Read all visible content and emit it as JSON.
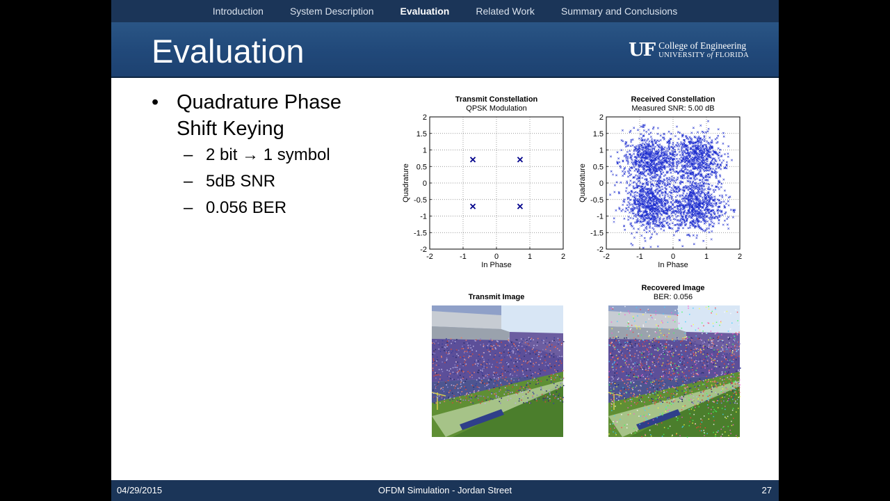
{
  "nav": {
    "items": [
      "Introduction",
      "System Description",
      "Evaluation",
      "Related Work",
      "Summary and Conclusions"
    ],
    "active_index": 2
  },
  "slide": {
    "title": "Evaluation"
  },
  "logo": {
    "mark": "UF",
    "line1": "College of Engineering",
    "line2_a": "UNIVERSITY ",
    "line2_b": "of",
    "line2_c": " FLORIDA"
  },
  "bullets": {
    "main": {
      "marker": "•",
      "text_line1": "Quadrature Phase",
      "text_line2": "Shift Keying"
    },
    "subs": [
      {
        "marker": "–",
        "text": "2 bit → 1 symbol"
      },
      {
        "marker": "–",
        "text": "5dB SNR"
      },
      {
        "marker": "–",
        "text": "0.056 BER"
      }
    ]
  },
  "chart_data": [
    {
      "type": "scatter",
      "title": "Transmit Constellation",
      "subtitle": "QPSK Modulation",
      "xlabel": "In Phase",
      "ylabel": "Quadrature",
      "xlim": [
        -2,
        2
      ],
      "ylim": [
        -2,
        2
      ],
      "xticks": [
        "-2",
        "-1",
        "0",
        "1",
        "2"
      ],
      "yticks": [
        "2",
        "1.5",
        "1",
        "0.5",
        "0",
        "-0.5",
        "-1",
        "-1.5",
        "-2"
      ],
      "grid": true,
      "marker": "x",
      "points": [
        [
          -0.707,
          0.707
        ],
        [
          0.707,
          0.707
        ],
        [
          -0.707,
          -0.707
        ],
        [
          0.707,
          -0.707
        ]
      ]
    },
    {
      "type": "scatter",
      "title": "Received Constellation",
      "subtitle": "Measured SNR: 5.00 dB",
      "xlabel": "In Phase",
      "ylabel": "Quadrature",
      "xlim": [
        -2,
        2
      ],
      "ylim": [
        -2,
        2
      ],
      "xticks": [
        "-2",
        "-1",
        "0",
        "1",
        "2"
      ],
      "yticks": [
        "2",
        "1.5",
        "1",
        "0.5",
        "0",
        "-0.5",
        "-1",
        "-1.5",
        "-2"
      ],
      "grid": true,
      "marker": "x",
      "clusters": [
        [
          -0.707,
          0.707
        ],
        [
          0.707,
          0.707
        ],
        [
          -0.707,
          -0.707
        ],
        [
          0.707,
          -0.707
        ]
      ],
      "noise_sigma": 0.4,
      "point_count": 3000
    }
  ],
  "images": [
    {
      "title": "Transmit Image",
      "subtitle": ""
    },
    {
      "title": "Recovered Image",
      "subtitle": "BER: 0.056"
    }
  ],
  "footer": {
    "date": "04/29/2015",
    "center": "OFDM Simulation - Jordan Street",
    "page": "27"
  },
  "colors": {
    "nav_bg": "#1b3558",
    "title_bg": "#21497a",
    "marker": "#00008b"
  }
}
